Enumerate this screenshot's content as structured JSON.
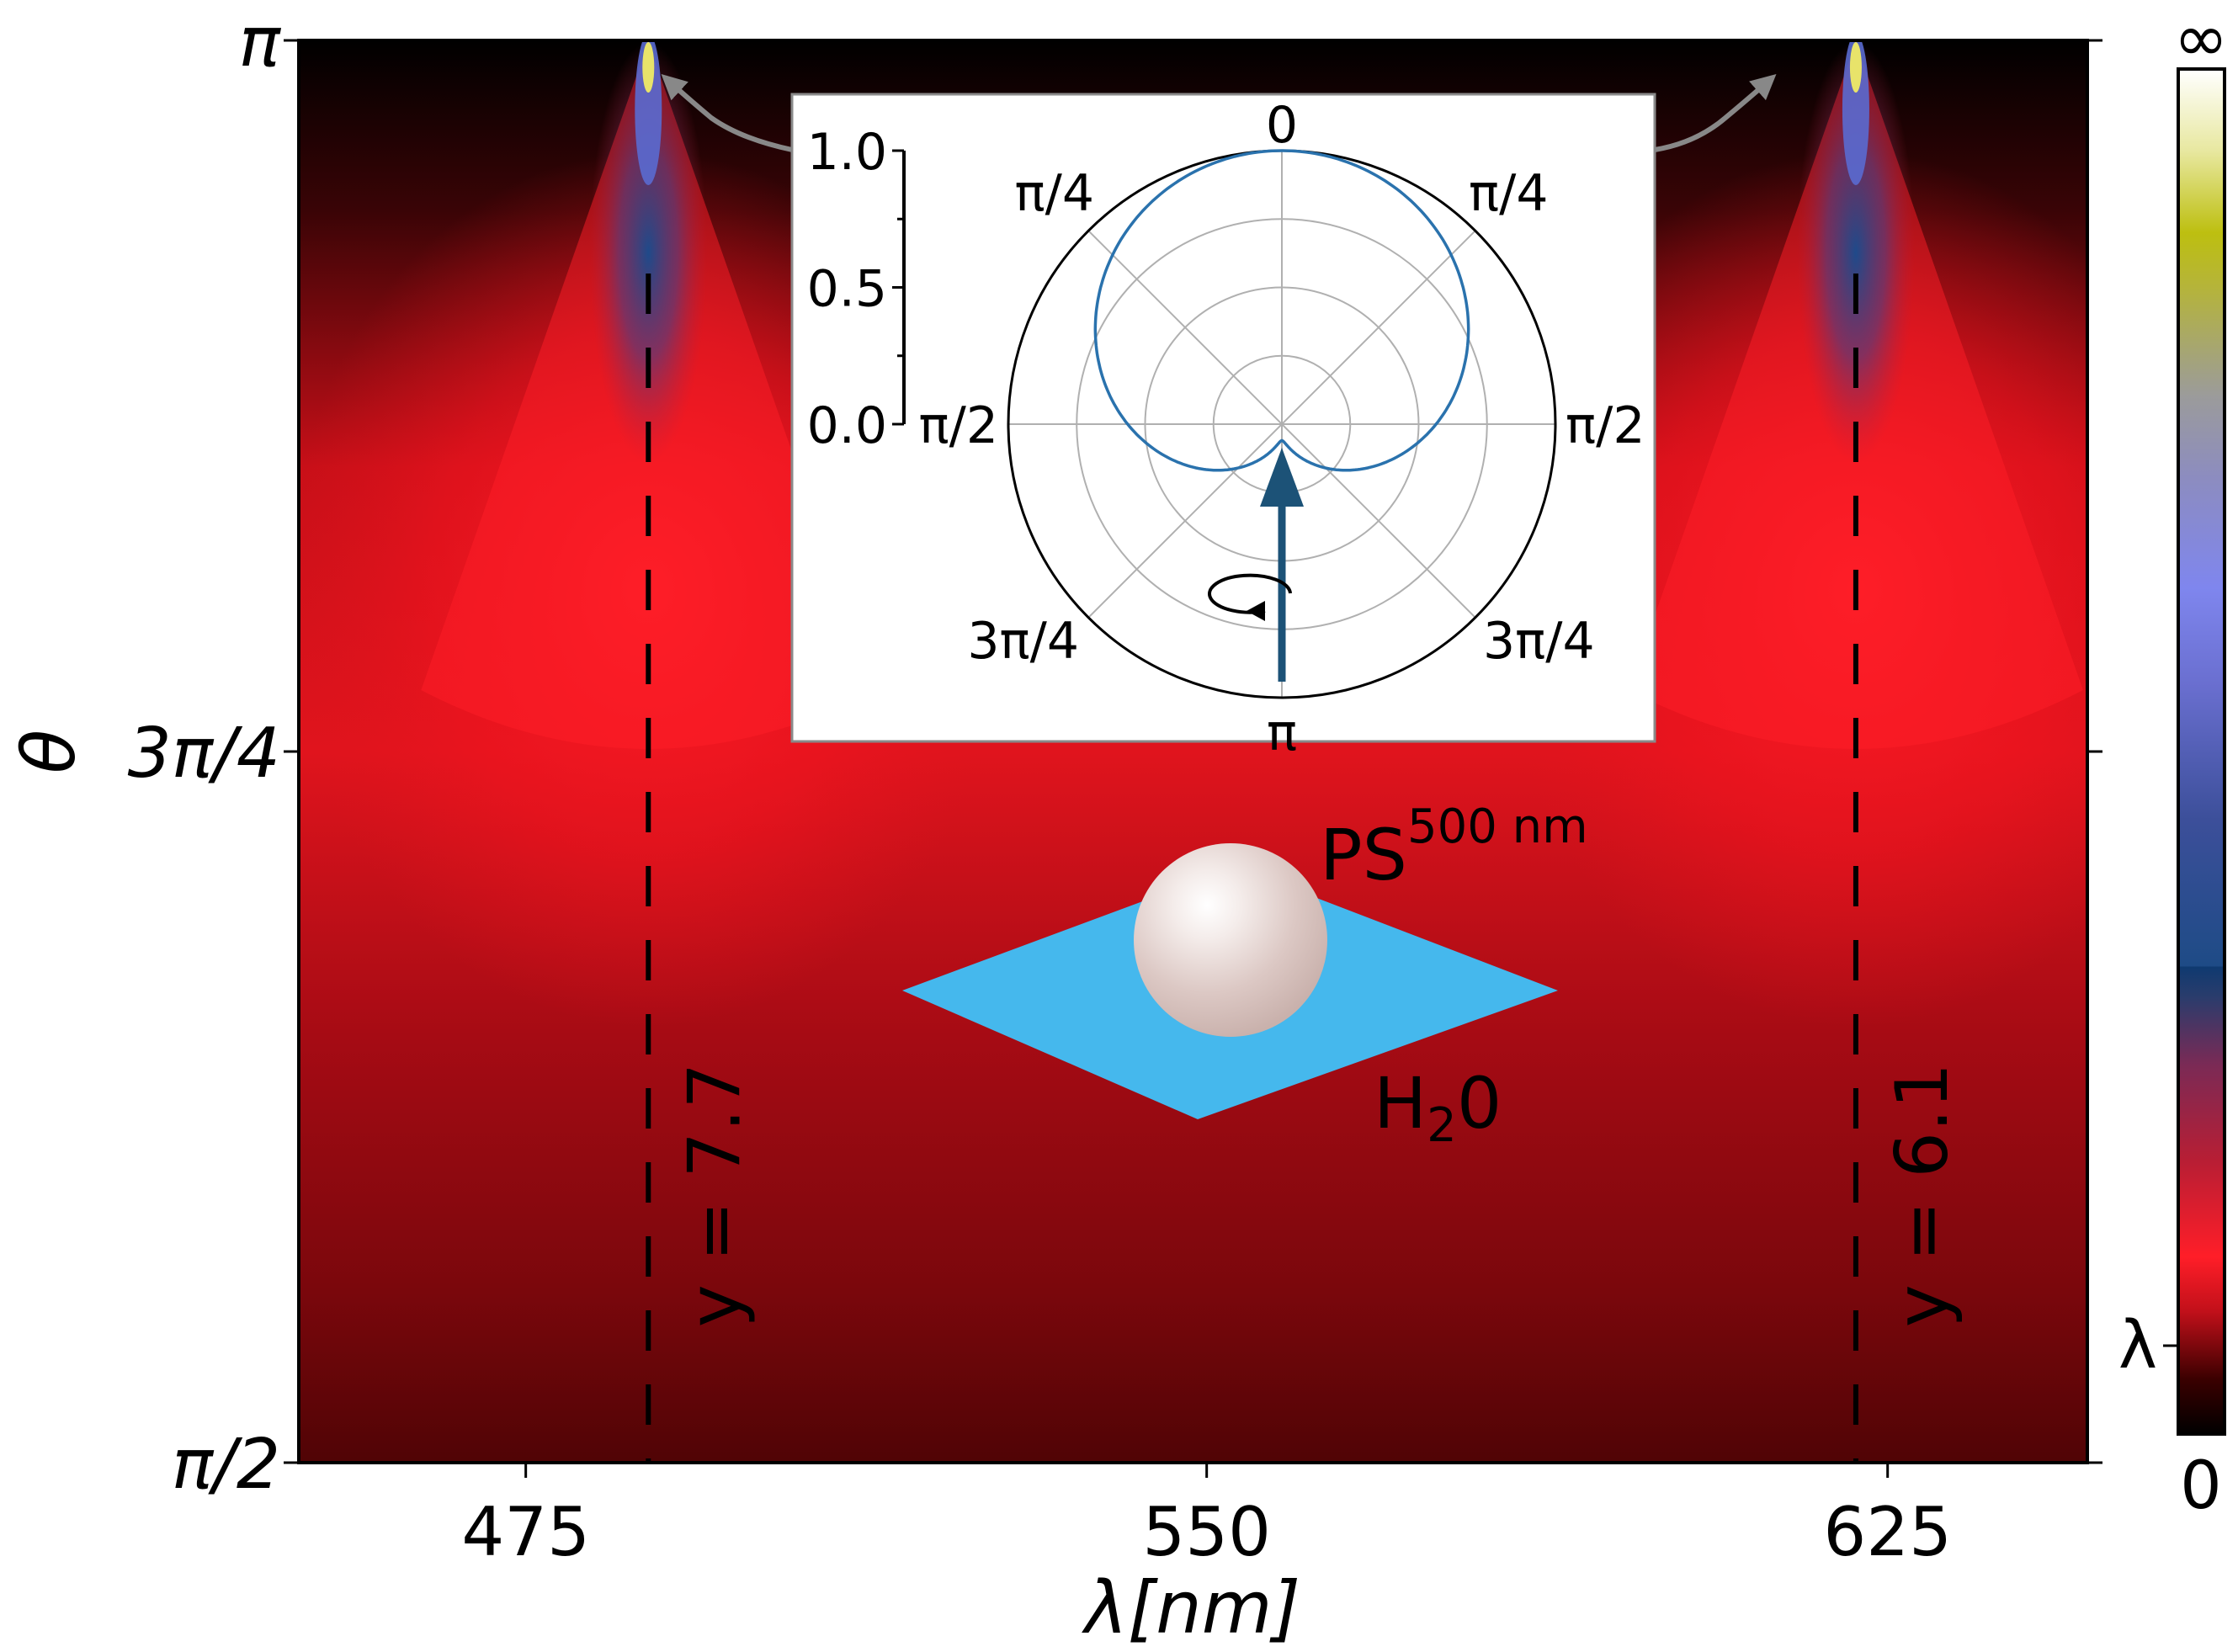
{
  "chart_data": {
    "type": "heatmap",
    "x": {
      "label": "λ[nm]",
      "ticks": [
        475,
        550,
        625
      ],
      "range": [
        450,
        647
      ]
    },
    "y": {
      "label": "θ",
      "ticks": [
        "π/2",
        "3π/4",
        "π"
      ],
      "range": [
        1.5708,
        3.1416
      ]
    },
    "colorbar": {
      "ticks": [
        "0",
        "λ",
        "∞"
      ],
      "colors": [
        "#000000",
        "#5a0000",
        "#c2101a",
        "#ff1e28",
        "#7b2a55",
        "#103a6e",
        "#3c4f9a",
        "#7f86ee",
        "#9b9b9b",
        "#bdbf10",
        "#fffde0",
        "#ffffff"
      ]
    },
    "resonances": [
      {
        "lambda": 488.5,
        "label": "y = 7.7"
      },
      {
        "lambda": 621.5,
        "label": "y = 6.1"
      }
    ],
    "inset": {
      "type": "polar",
      "r_ticks": [
        "0.0",
        "0.5",
        "1.0"
      ],
      "angle_labels": {
        "top": "0",
        "right": "π/2",
        "left": "π/2",
        "bottom": "π",
        "upper_left": "π/4",
        "upper_right": "π/4",
        "lower_left": "3π/4",
        "lower_right": "3π/4"
      },
      "curve_color": "#2a72ad",
      "arrow_color": "#1c5277",
      "cardioid_min": 0.06
    },
    "illustration": {
      "particle_label": "PS",
      "particle_superscript": "500 nm",
      "medium_label": "H",
      "medium_subscript": "2",
      "medium_suffix": "0",
      "medium_color": "#45b8ed"
    }
  }
}
